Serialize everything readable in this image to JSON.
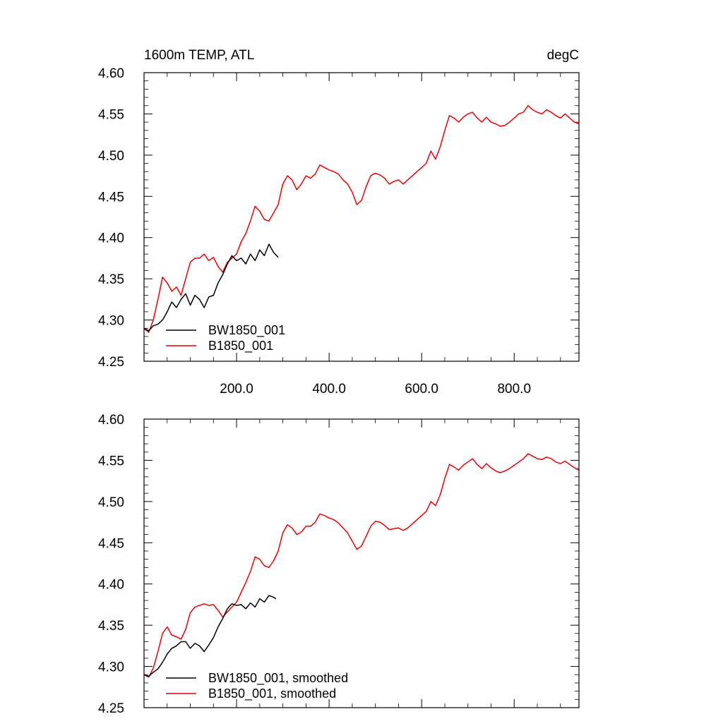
{
  "chart_data": [
    {
      "type": "line",
      "title": "1600m TEMP, ATL",
      "units": "degC",
      "xlim": [
        0,
        940
      ],
      "ylim": [
        4.25,
        4.6
      ],
      "xticks": [
        200,
        400,
        600,
        800
      ],
      "xtick_labels": [
        "200.0",
        "400.0",
        "600.0",
        "800.0"
      ],
      "yticks": [
        4.25,
        4.3,
        4.35,
        4.4,
        4.45,
        4.5,
        4.55,
        4.6
      ],
      "ytick_labels": [
        "4.25",
        "4.30",
        "4.35",
        "4.40",
        "4.45",
        "4.50",
        "4.55",
        "4.60"
      ],
      "grid": false,
      "legend_position": "bottom-left",
      "series": [
        {
          "name": "BW1850_001",
          "color": "#000000",
          "x": [
            0,
            10,
            20,
            30,
            40,
            50,
            60,
            70,
            80,
            90,
            100,
            110,
            120,
            130,
            140,
            150,
            160,
            170,
            180,
            190,
            200,
            210,
            220,
            230,
            240,
            250,
            260,
            270,
            280,
            290
          ],
          "y": [
            4.29,
            4.287,
            4.293,
            4.295,
            4.3,
            4.31,
            4.322,
            4.315,
            4.325,
            4.332,
            4.318,
            4.33,
            4.325,
            4.315,
            4.328,
            4.33,
            4.345,
            4.355,
            4.368,
            4.378,
            4.372,
            4.375,
            4.368,
            4.38,
            4.372,
            4.385,
            4.378,
            4.392,
            4.382,
            4.376
          ]
        },
        {
          "name": "B1850_001",
          "color": "#e60000",
          "x": [
            0,
            10,
            20,
            30,
            40,
            50,
            60,
            70,
            80,
            90,
            100,
            110,
            120,
            130,
            140,
            150,
            160,
            170,
            180,
            190,
            200,
            210,
            220,
            230,
            240,
            250,
            260,
            270,
            280,
            290,
            300,
            310,
            320,
            330,
            340,
            350,
            360,
            370,
            380,
            390,
            400,
            410,
            420,
            430,
            440,
            450,
            460,
            470,
            480,
            490,
            500,
            510,
            520,
            530,
            540,
            550,
            560,
            570,
            580,
            590,
            600,
            610,
            620,
            630,
            640,
            650,
            660,
            670,
            680,
            690,
            700,
            710,
            720,
            730,
            740,
            750,
            760,
            770,
            780,
            790,
            800,
            810,
            820,
            830,
            840,
            850,
            860,
            870,
            880,
            890,
            900,
            910,
            920,
            930,
            940
          ],
          "y": [
            4.29,
            4.285,
            4.3,
            4.325,
            4.352,
            4.345,
            4.335,
            4.34,
            4.33,
            4.35,
            4.37,
            4.375,
            4.375,
            4.38,
            4.372,
            4.376,
            4.365,
            4.358,
            4.37,
            4.375,
            4.38,
            4.395,
            4.405,
            4.42,
            4.438,
            4.432,
            4.422,
            4.42,
            4.43,
            4.44,
            4.465,
            4.475,
            4.47,
            4.458,
            4.465,
            4.475,
            4.472,
            4.477,
            4.488,
            4.485,
            4.482,
            4.48,
            4.477,
            4.47,
            4.465,
            4.455,
            4.44,
            4.445,
            4.462,
            4.475,
            4.478,
            4.476,
            4.472,
            4.465,
            4.468,
            4.47,
            4.465,
            4.47,
            4.475,
            4.48,
            4.485,
            4.49,
            4.505,
            4.495,
            4.51,
            4.53,
            4.548,
            4.545,
            4.54,
            4.546,
            4.55,
            4.552,
            4.545,
            4.54,
            4.546,
            4.54,
            4.538,
            4.535,
            4.536,
            4.54,
            4.545,
            4.55,
            4.552,
            4.56,
            4.555,
            4.552,
            4.55,
            4.555,
            4.552,
            4.548,
            4.545,
            4.55,
            4.545,
            4.54,
            4.538
          ]
        }
      ]
    },
    {
      "type": "line",
      "xlim": [
        0,
        940
      ],
      "ylim": [
        4.25,
        4.6
      ],
      "xticks": [
        200,
        400,
        600,
        800
      ],
      "yticks": [
        4.25,
        4.3,
        4.35,
        4.4,
        4.45,
        4.5,
        4.55,
        4.6
      ],
      "ytick_labels": [
        "4.25",
        "4.30",
        "4.35",
        "4.40",
        "4.45",
        "4.50",
        "4.55",
        "4.60"
      ],
      "grid": false,
      "legend_position": "bottom-left",
      "series": [
        {
          "name": "BW1850_001, smoothed",
          "color": "#000000",
          "x": [
            0,
            10,
            20,
            30,
            40,
            50,
            60,
            70,
            80,
            90,
            100,
            110,
            120,
            130,
            140,
            150,
            160,
            170,
            180,
            190,
            200,
            210,
            220,
            230,
            240,
            250,
            260,
            270,
            280,
            285
          ],
          "y": [
            4.29,
            4.288,
            4.293,
            4.297,
            4.305,
            4.315,
            4.322,
            4.325,
            4.33,
            4.33,
            4.322,
            4.328,
            4.325,
            4.318,
            4.326,
            4.335,
            4.348,
            4.358,
            4.37,
            4.376,
            4.374,
            4.375,
            4.37,
            4.377,
            4.372,
            4.382,
            4.378,
            4.386,
            4.384,
            4.382
          ]
        },
        {
          "name": "B1850_001, smoothed",
          "color": "#e60000",
          "x": [
            0,
            10,
            20,
            30,
            40,
            50,
            60,
            70,
            80,
            90,
            100,
            110,
            120,
            130,
            140,
            150,
            160,
            170,
            180,
            190,
            200,
            210,
            220,
            230,
            240,
            250,
            260,
            270,
            280,
            290,
            300,
            310,
            320,
            330,
            340,
            350,
            360,
            370,
            380,
            390,
            400,
            410,
            420,
            430,
            440,
            450,
            460,
            470,
            480,
            490,
            500,
            510,
            520,
            530,
            540,
            550,
            560,
            570,
            580,
            590,
            600,
            610,
            620,
            630,
            640,
            650,
            660,
            670,
            680,
            690,
            700,
            710,
            720,
            730,
            740,
            750,
            760,
            770,
            780,
            790,
            800,
            810,
            820,
            830,
            840,
            850,
            860,
            870,
            880,
            890,
            900,
            910,
            920,
            930,
            940
          ],
          "y": [
            4.29,
            4.287,
            4.298,
            4.318,
            4.34,
            4.348,
            4.338,
            4.336,
            4.333,
            4.345,
            4.365,
            4.372,
            4.374,
            4.376,
            4.374,
            4.375,
            4.368,
            4.36,
            4.366,
            4.372,
            4.378,
            4.39,
            4.402,
            4.415,
            4.433,
            4.43,
            4.422,
            4.42,
            4.428,
            4.44,
            4.462,
            4.472,
            4.468,
            4.46,
            4.463,
            4.47,
            4.47,
            4.475,
            4.485,
            4.483,
            4.48,
            4.478,
            4.474,
            4.468,
            4.462,
            4.452,
            4.442,
            4.446,
            4.458,
            4.47,
            4.476,
            4.475,
            4.471,
            4.466,
            4.467,
            4.468,
            4.465,
            4.468,
            4.473,
            4.478,
            4.483,
            4.488,
            4.5,
            4.495,
            4.508,
            4.528,
            4.545,
            4.542,
            4.538,
            4.544,
            4.548,
            4.552,
            4.545,
            4.54,
            4.546,
            4.541,
            4.537,
            4.535,
            4.537,
            4.54,
            4.544,
            4.548,
            4.552,
            4.558,
            4.555,
            4.552,
            4.551,
            4.554,
            4.552,
            4.548,
            4.546,
            4.549,
            4.545,
            4.541,
            4.538
          ]
        }
      ]
    }
  ]
}
